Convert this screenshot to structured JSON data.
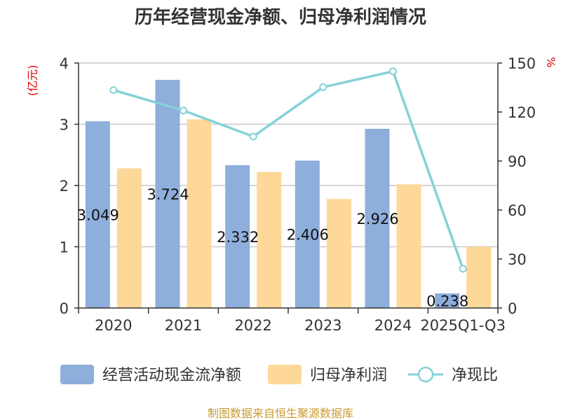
{
  "title": "历年经营现金净额、归母净利润情况",
  "source": "制图数据来自恒生聚源数据库",
  "colors": {
    "cash": "#8eaedb",
    "profit": "#fdd898",
    "ratio": "#85d1d8",
    "axis": "#333333",
    "grid": "#c8c8c8",
    "unit": "#e00000",
    "source": "#c89a2e"
  },
  "chart_data": {
    "type": "bar",
    "title": "历年经营现金净额、归母净利润情况",
    "categories": [
      "2020",
      "2021",
      "2022",
      "2023",
      "2024",
      "2025Q1-Q3"
    ],
    "y_left": {
      "unit": "(亿元)",
      "ylim": [
        0,
        4
      ],
      "ticks": [
        "0",
        "1",
        "2",
        "3",
        "4"
      ]
    },
    "y_right": {
      "unit": "%",
      "ylim": [
        0,
        150
      ],
      "ticks": [
        "0",
        "30",
        "60",
        "90",
        "120",
        "150"
      ]
    },
    "series": [
      {
        "name": "经营活动现金流净额",
        "type": "bar",
        "axis": "left",
        "values": [
          3.049,
          3.724,
          2.332,
          2.406,
          2.926,
          0.238
        ],
        "labels": [
          "3.049",
          "3.724",
          "2.332",
          "2.406",
          "2.926",
          "0.238"
        ]
      },
      {
        "name": "归母净利润",
        "type": "bar",
        "axis": "left",
        "values": [
          2.28,
          3.08,
          2.22,
          1.78,
          2.02,
          1.0
        ]
      },
      {
        "name": "净现比",
        "type": "line",
        "axis": "right",
        "values": [
          133.4,
          120.9,
          105.0,
          135.2,
          144.9,
          24.0
        ]
      }
    ],
    "grid": true,
    "legend": "bottom"
  }
}
